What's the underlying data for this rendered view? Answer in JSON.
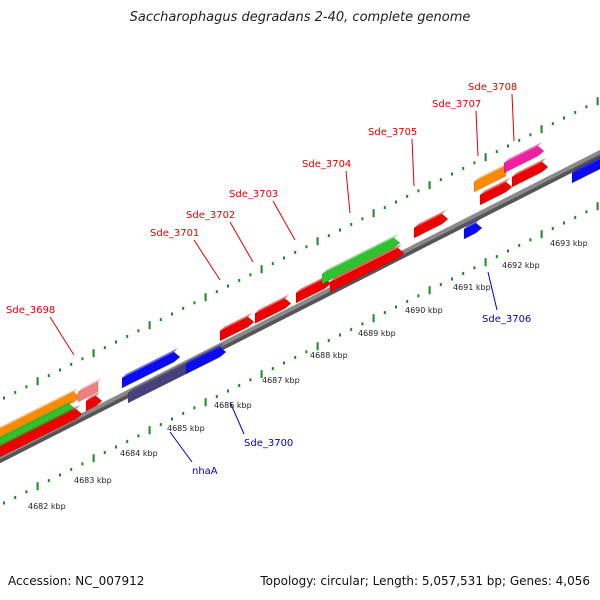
{
  "title": "Saccharophagus degradans 2-40, complete genome",
  "footer": {
    "accession": "Accession: NC_007912",
    "summary": "Topology: circular; Length: 5,057,531 bp; Genes: 4,056"
  },
  "kbp_labels": [
    "4682 kbp",
    "4683 kbp",
    "4684 kbp",
    "4685 kbp",
    "4686 kbp",
    "4687 kbp",
    "4688 kbp",
    "4689 kbp",
    "4690 kbp",
    "4691 kbp",
    "4692 kbp",
    "4693 kbp"
  ],
  "upper_labels": [
    {
      "text": "Sde_3698",
      "color": "#e00000"
    },
    {
      "text": "Sde_3701",
      "color": "#e00000"
    },
    {
      "text": "Sde_3702",
      "color": "#e00000"
    },
    {
      "text": "Sde_3703",
      "color": "#e00000"
    },
    {
      "text": "Sde_3704",
      "color": "#e00000"
    },
    {
      "text": "Sde_3705",
      "color": "#e00000"
    },
    {
      "text": "Sde_3707",
      "color": "#e00000"
    },
    {
      "text": "Sde_3708",
      "color": "#e00000"
    }
  ],
  "lower_labels": [
    {
      "text": "nhaA",
      "color": "#0000cc"
    },
    {
      "text": "Sde_3700",
      "color": "#0000cc"
    },
    {
      "text": "Sde_3706",
      "color": "#0000cc"
    }
  ],
  "colors": {
    "red": "#ee0000",
    "blue": "#0b0bf0",
    "navy": "#48407a",
    "green": "#2ec22e",
    "orange": "#ff8a00",
    "pink": "#f08080",
    "magenta": "#f020a0",
    "backbone": "#8a8a8a",
    "tick": "#1a8a1a"
  }
}
